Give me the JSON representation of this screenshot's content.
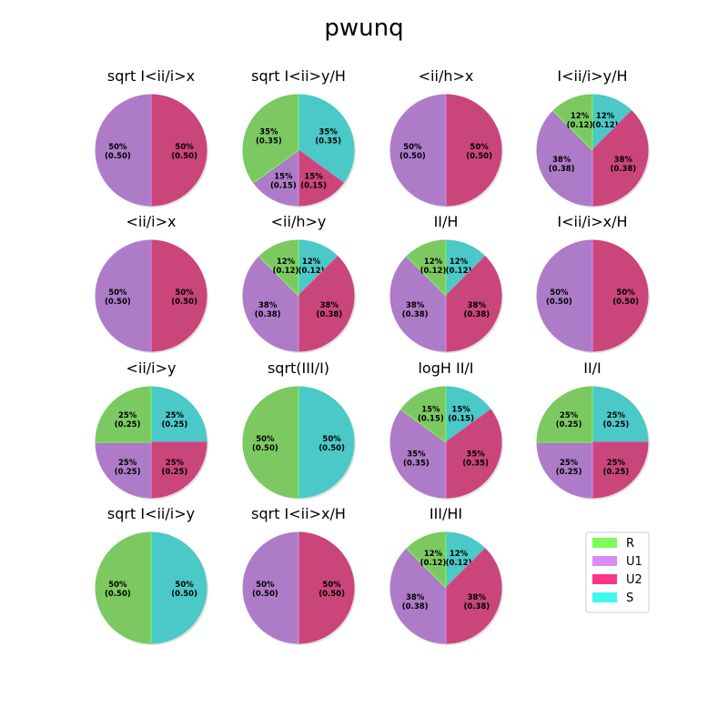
{
  "chart_data": {
    "type": "pie",
    "title": "pwunq",
    "legend": {
      "position": "lower-right",
      "entries": [
        {
          "name": "R",
          "color": "#7cfc5a"
        },
        {
          "name": "U1",
          "color": "#d98cf5"
        },
        {
          "name": "U2",
          "color": "#ff3388"
        },
        {
          "name": "S",
          "color": "#3ff9ef"
        }
      ]
    },
    "series_colors": {
      "R": "#7cc961",
      "U1": "#ad7bc8",
      "U2": "#c9457a",
      "S": "#4bc8c8"
    },
    "edge_colors": {
      "R": "#7cfc5a",
      "U1": "#d98cf5",
      "U2": "#ff3388",
      "S": "#3ff9ef"
    },
    "pies": [
      {
        "title": "sqrt I<ii/i>x",
        "slices": [
          {
            "name": "U2",
            "value": 0.5,
            "label": "50%\n(0.50)"
          },
          {
            "name": "U1",
            "value": 0.5,
            "label": "50%\n(0.50)"
          }
        ]
      },
      {
        "title": "sqrt I<ii>y/H",
        "slices": [
          {
            "name": "S",
            "value": 0.35,
            "label": "35%\n(0.35)"
          },
          {
            "name": "U2",
            "value": 0.15,
            "label": "15%\n(0.15)"
          },
          {
            "name": "U1",
            "value": 0.15,
            "label": "15%\n(0.15)"
          },
          {
            "name": "R",
            "value": 0.35,
            "label": "35%\n(0.35)"
          }
        ]
      },
      {
        "title": "<ii/h>x",
        "slices": [
          {
            "name": "U2",
            "value": 0.5,
            "label": "50%\n(0.50)"
          },
          {
            "name": "U1",
            "value": 0.5,
            "label": "50%\n(0.50)"
          }
        ]
      },
      {
        "title": "I<ii/i>y/H",
        "slices": [
          {
            "name": "S",
            "value": 0.125,
            "label": "12%\n(0.12)"
          },
          {
            "name": "U2",
            "value": 0.375,
            "label": "38%\n(0.38)"
          },
          {
            "name": "U1",
            "value": 0.375,
            "label": "38%\n(0.38)"
          },
          {
            "name": "R",
            "value": 0.125,
            "label": "12%\n(0.12)"
          }
        ]
      },
      {
        "title": "<ii/i>x",
        "slices": [
          {
            "name": "U2",
            "value": 0.5,
            "label": "50%\n(0.50)"
          },
          {
            "name": "U1",
            "value": 0.5,
            "label": "50%\n(0.50)"
          }
        ]
      },
      {
        "title": "<ii/h>y",
        "slices": [
          {
            "name": "S",
            "value": 0.125,
            "label": "12%\n(0.12)"
          },
          {
            "name": "U2",
            "value": 0.375,
            "label": "38%\n(0.38)"
          },
          {
            "name": "U1",
            "value": 0.375,
            "label": "38%\n(0.38)"
          },
          {
            "name": "R",
            "value": 0.125,
            "label": "12%\n(0.12)"
          }
        ]
      },
      {
        "title": "II/H",
        "slices": [
          {
            "name": "S",
            "value": 0.125,
            "label": "12%\n(0.12)"
          },
          {
            "name": "U2",
            "value": 0.375,
            "label": "38%\n(0.38)"
          },
          {
            "name": "U1",
            "value": 0.375,
            "label": "38%\n(0.38)"
          },
          {
            "name": "R",
            "value": 0.125,
            "label": "12%\n(0.12)"
          }
        ]
      },
      {
        "title": "I<ii/i>x/H",
        "slices": [
          {
            "name": "U2",
            "value": 0.5,
            "label": "50%\n(0.50)"
          },
          {
            "name": "U1",
            "value": 0.5,
            "label": "50%\n(0.50)"
          }
        ]
      },
      {
        "title": "<ii/i>y",
        "slices": [
          {
            "name": "S",
            "value": 0.25,
            "label": "25%\n(0.25)"
          },
          {
            "name": "U2",
            "value": 0.25,
            "label": "25%\n(0.25)"
          },
          {
            "name": "U1",
            "value": 0.25,
            "label": "25%\n(0.25)"
          },
          {
            "name": "R",
            "value": 0.25,
            "label": "25%\n(0.25)"
          }
        ]
      },
      {
        "title": "sqrt(III/I)",
        "slices": [
          {
            "name": "S",
            "value": 0.5,
            "label": "50%\n(0.50)"
          },
          {
            "name": "R",
            "value": 0.5,
            "label": "50%\n(0.50)"
          }
        ]
      },
      {
        "title": "logH II/I",
        "slices": [
          {
            "name": "S",
            "value": 0.15,
            "label": "15%\n(0.15)"
          },
          {
            "name": "U2",
            "value": 0.35,
            "label": "35%\n(0.35)"
          },
          {
            "name": "U1",
            "value": 0.35,
            "label": "35%\n(0.35)"
          },
          {
            "name": "R",
            "value": 0.15,
            "label": "15%\n(0.15)"
          }
        ]
      },
      {
        "title": "II/I",
        "slices": [
          {
            "name": "S",
            "value": 0.25,
            "label": "25%\n(0.25)"
          },
          {
            "name": "U2",
            "value": 0.25,
            "label": "25%\n(0.25)"
          },
          {
            "name": "U1",
            "value": 0.25,
            "label": "25%\n(0.25)"
          },
          {
            "name": "R",
            "value": 0.25,
            "label": "25%\n(0.25)"
          }
        ]
      },
      {
        "title": "sqrt I<ii/i>y",
        "slices": [
          {
            "name": "S",
            "value": 0.5,
            "label": "50%\n(0.50)"
          },
          {
            "name": "R",
            "value": 0.5,
            "label": "50%\n(0.50)"
          }
        ]
      },
      {
        "title": "sqrt I<ii>x/H",
        "slices": [
          {
            "name": "U2",
            "value": 0.5,
            "label": "50%\n(0.50)"
          },
          {
            "name": "U1",
            "value": 0.5,
            "label": "50%\n(0.50)"
          }
        ]
      },
      {
        "title": "III/HI",
        "slices": [
          {
            "name": "S",
            "value": 0.125,
            "label": "12%\n(0.12)"
          },
          {
            "name": "U2",
            "value": 0.375,
            "label": "38%\n(0.38)"
          },
          {
            "name": "U1",
            "value": 0.375,
            "label": "38%\n(0.38)"
          },
          {
            "name": "R",
            "value": 0.125,
            "label": "12%\n(0.12)"
          }
        ]
      }
    ]
  }
}
